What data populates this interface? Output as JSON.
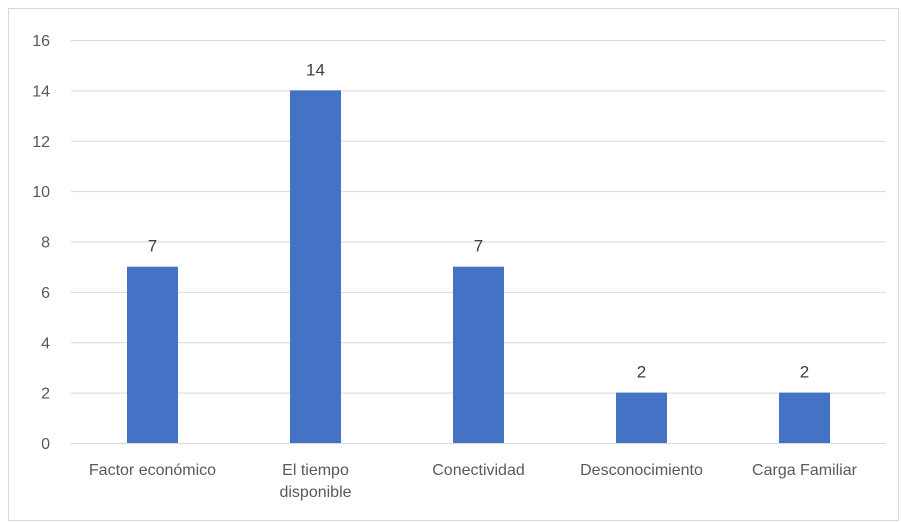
{
  "chart_data": {
    "type": "bar",
    "categories": [
      [
        "Factor económico"
      ],
      [
        "El tiempo",
        "disponible"
      ],
      [
        "Conectividad"
      ],
      [
        "Desconocimiento"
      ],
      [
        "Carga Familiar"
      ]
    ],
    "values": [
      7,
      14,
      7,
      2,
      2
    ],
    "ylim": [
      0,
      16
    ],
    "yticks": [
      0,
      2,
      4,
      6,
      8,
      10,
      12,
      14,
      16
    ],
    "bar_color": "#4472c4",
    "grid_color": "#d9d9d9",
    "grid": true,
    "data_labels": true,
    "legend": "none"
  }
}
